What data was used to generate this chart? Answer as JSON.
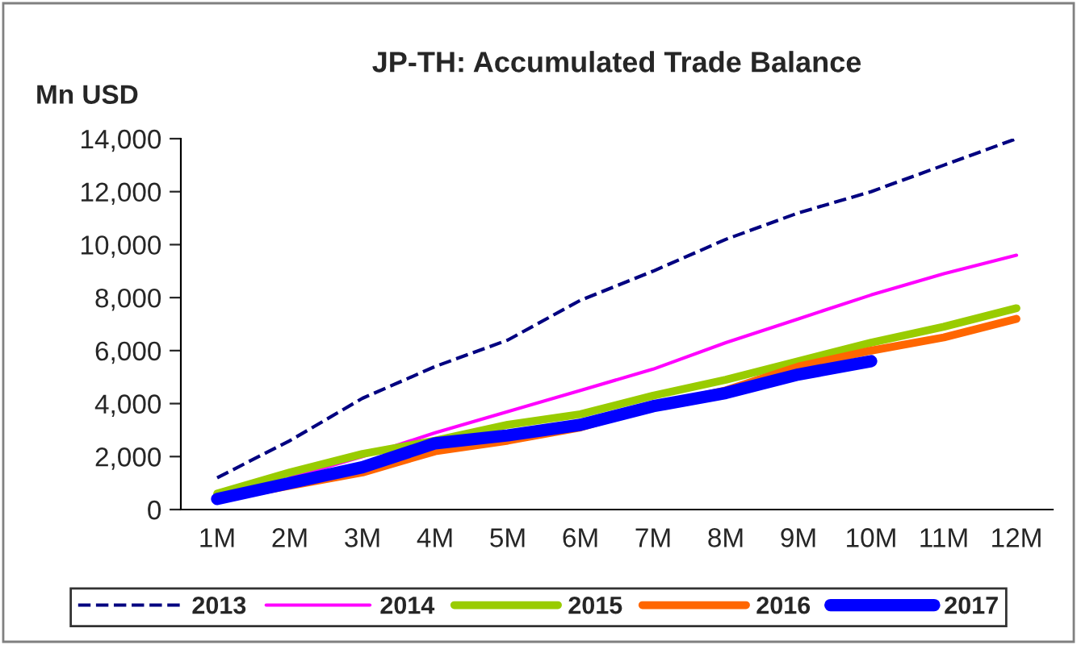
{
  "chart_data": {
    "type": "line",
    "title": "JP-TH: Accumulated Trade Balance",
    "ylabel": "Mn USD",
    "categories": [
      "1M",
      "2M",
      "3M",
      "4M",
      "5M",
      "6M",
      "7M",
      "8M",
      "9M",
      "10M",
      "11M",
      "12M"
    ],
    "series": [
      {
        "name": "2013",
        "color": "#000080",
        "line_style": "dashed",
        "values": [
          1200,
          2600,
          4200,
          5400,
          6400,
          7900,
          9000,
          10200,
          11200,
          12000,
          13000,
          14000
        ]
      },
      {
        "name": "2014",
        "color": "#ff00ff",
        "line_style": "solid",
        "values": [
          null,
          1200,
          2000,
          2900,
          3700,
          4500,
          5300,
          6300,
          7200,
          8100,
          8900,
          9600
        ]
      },
      {
        "name": "2015",
        "color": "#99cc00",
        "line_style": "solid",
        "values": [
          600,
          1400,
          2100,
          2600,
          3200,
          3600,
          4300,
          4900,
          5600,
          6300,
          6900,
          7600
        ]
      },
      {
        "name": "2016",
        "color": "#ff6600",
        "line_style": "solid",
        "values": [
          400,
          900,
          1400,
          2200,
          2600,
          3100,
          3900,
          4500,
          5400,
          6000,
          6500,
          7200
        ]
      },
      {
        "name": "2017",
        "color": "#0000ff",
        "line_style": "solid",
        "values": [
          400,
          1000,
          1600,
          2500,
          2800,
          3200,
          3900,
          4400,
          5100,
          5600,
          null,
          null
        ]
      }
    ],
    "ylim": [
      0,
      14000
    ],
    "yticks": [
      {
        "value": 0,
        "label": "0"
      },
      {
        "value": 2000,
        "label": "2,000"
      },
      {
        "value": 4000,
        "label": "4,000"
      },
      {
        "value": 6000,
        "label": "6,000"
      },
      {
        "value": 8000,
        "label": "8,000"
      },
      {
        "value": 10000,
        "label": "10,000"
      },
      {
        "value": 12000,
        "label": "12,000"
      },
      {
        "value": 14000,
        "label": "14,000"
      }
    ],
    "grid": false,
    "legend": "bottom",
    "marker": "none"
  }
}
